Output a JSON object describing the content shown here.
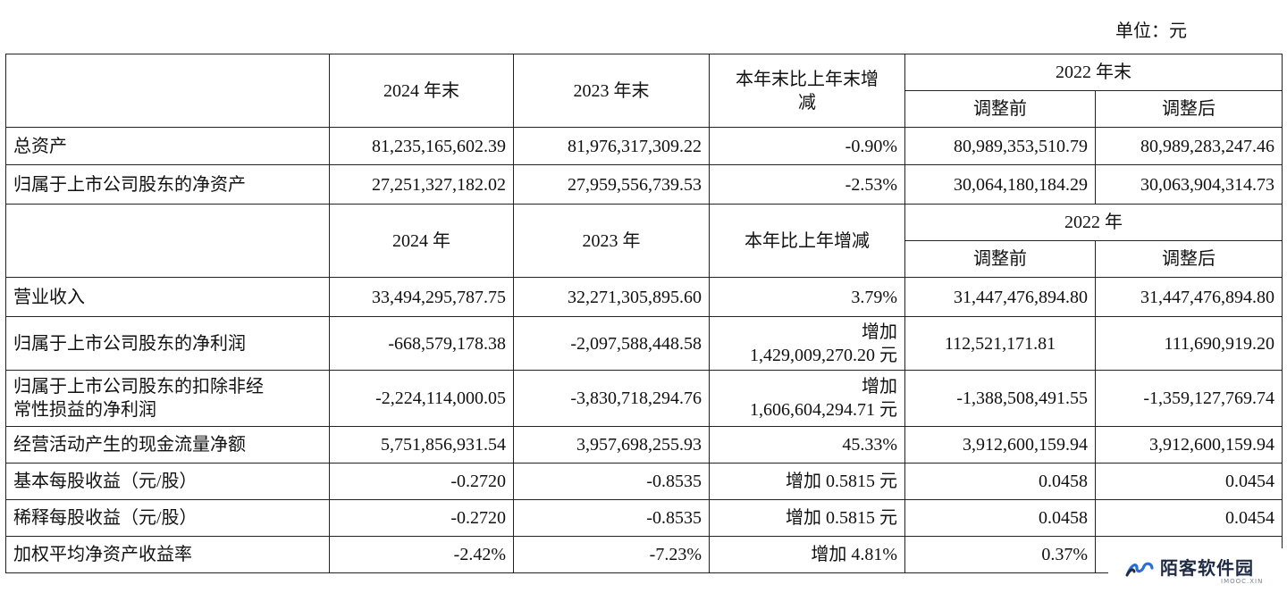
{
  "unit_label": "单位：元",
  "header1": {
    "col_2024": "2024 年末",
    "col_2023": "2023 年末",
    "col_change_line1": "本年末比上年末增",
    "col_change_line2": "减",
    "col_2022": "2022 年末",
    "col_before": "调整前",
    "col_after": "调整后"
  },
  "section1_rows": [
    {
      "label": "总资产",
      "v2024": "81,235,165,602.39",
      "v2023": "81,976,317,309.22",
      "change": "-0.90%",
      "before": "80,989,353,510.79",
      "after": "80,989,283,247.46"
    },
    {
      "label": "归属于上市公司股东的净资产",
      "v2024": "27,251,327,182.02",
      "v2023": "27,959,556,739.53",
      "change": "-2.53%",
      "before": "30,064,180,184.29",
      "after": "30,063,904,314.73"
    }
  ],
  "header2": {
    "col_2024": "2024 年",
    "col_2023": "2023 年",
    "col_change": "本年比上年增减",
    "col_2022": "2022 年",
    "col_before": "调整前",
    "col_after": "调整后"
  },
  "section2_rows": [
    {
      "label": "营业收入",
      "v2024": "33,494,295,787.75",
      "v2023": "32,271,305,895.60",
      "change": "3.79%",
      "before": "31,447,476,894.80",
      "after": "31,447,476,894.80"
    },
    {
      "label": "归属于上市公司股东的净利润",
      "v2024": "-668,579,178.38",
      "v2023": "-2,097,588,448.58",
      "change_line1": "增加",
      "change_line2": "1,429,009,270.20 元",
      "before": "112,521,171.81",
      "after": "111,690,919.20"
    },
    {
      "label_line1": "归属于上市公司股东的扣除非经",
      "label_line2": "常性损益的净利润",
      "v2024": "-2,224,114,000.05",
      "v2023": "-3,830,718,294.76",
      "change_line1": "增加",
      "change_line2": "1,606,604,294.71 元",
      "before": "-1,388,508,491.55",
      "after": "-1,359,127,769.74"
    },
    {
      "label": "经营活动产生的现金流量净额",
      "v2024": "5,751,856,931.54",
      "v2023": "3,957,698,255.93",
      "change": "45.33%",
      "before": "3,912,600,159.94",
      "after": "3,912,600,159.94"
    },
    {
      "label": "基本每股收益（元/股）",
      "v2024": "-0.2720",
      "v2023": "-0.8535",
      "change": "增加 0.5815 元",
      "before": "0.0458",
      "after": "0.0454"
    },
    {
      "label": "稀释每股收益（元/股）",
      "v2024": "-0.2720",
      "v2023": "-0.8535",
      "change": "增加 0.5815 元",
      "before": "0.0458",
      "after": "0.0454"
    },
    {
      "label": "加权平均净资产收益率",
      "v2024": "-2.42%",
      "v2023": "-7.23%",
      "change": "增加 4.81%",
      "before": "0.37%",
      "after": ""
    }
  ],
  "watermark": {
    "name": "陌客软件园",
    "sub": "IMOOC.XIN",
    "color": "#1f2a44",
    "logo_color": "#2a6fd6"
  }
}
